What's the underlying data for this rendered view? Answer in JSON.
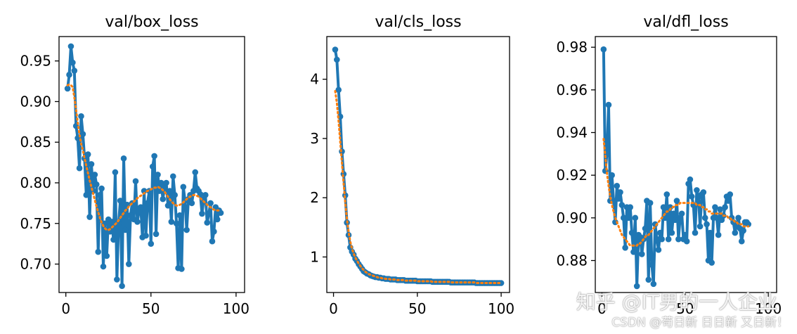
{
  "colors": {
    "series": "#1f77b4",
    "smooth": "#ff7f0e",
    "axis": "#000000"
  },
  "watermarks": {
    "zhihu": "知乎 @IT男的一人企业",
    "csdn": "CSDN @苟日新 日日新 又日新！"
  },
  "chart_data": [
    {
      "type": "line",
      "title": "val/box_loss",
      "xlim": [
        -4,
        105
      ],
      "ylim": [
        0.665,
        0.98
      ],
      "xticks": [
        0,
        50,
        100
      ],
      "yticks": [
        0.7,
        0.75,
        0.8,
        0.85,
        0.9,
        0.95
      ],
      "ytick_labels": [
        "0.70",
        "0.75",
        "0.80",
        "0.85",
        "0.90",
        "0.95"
      ],
      "x_start": 1,
      "series": [
        {
          "style": "solid-markers",
          "values": [
            0.916,
            0.933,
            0.968,
            0.948,
            0.938,
            0.87,
            0.855,
            0.818,
            0.882,
            0.86,
            0.83,
            0.785,
            0.835,
            0.758,
            0.823,
            0.79,
            0.81,
            0.798,
            0.715,
            0.785,
            0.793,
            0.697,
            0.75,
            0.71,
            0.755,
            0.74,
            0.752,
            0.73,
            0.813,
            0.681,
            0.75,
            0.778,
            0.673,
            0.83,
            0.742,
            0.773,
            0.7,
            0.76,
            0.775,
            0.755,
            0.802,
            0.752,
            0.765,
            0.77,
            0.733,
            0.79,
            0.735,
            0.775,
            0.79,
            0.725,
            0.82,
            0.833,
            0.737,
            0.81,
            0.79,
            0.8,
            0.78,
            0.795,
            0.8,
            0.772,
            0.79,
            0.752,
            0.808,
            0.785,
            0.75,
            0.695,
            0.76,
            0.694,
            0.795,
            0.778,
            0.742,
            0.78,
            0.785,
            0.775,
            0.79,
            0.813,
            0.793,
            0.79,
            0.786,
            0.762,
            0.78,
            0.785,
            0.751,
            0.762,
            0.775,
            0.728,
            0.74,
            0.77,
            0.755,
            0.766,
            0.763
          ]
        },
        {
          "style": "dotted",
          "values": [
            0.92,
            0.921,
            0.92,
            0.918,
            0.905,
            0.89,
            0.874,
            0.86,
            0.848,
            0.84,
            0.83,
            0.821,
            0.812,
            0.803,
            0.795,
            0.787,
            0.779,
            0.771,
            0.764,
            0.757,
            0.751,
            0.747,
            0.744,
            0.742,
            0.742,
            0.743,
            0.745,
            0.747,
            0.749,
            0.751,
            0.754,
            0.757,
            0.76,
            0.763,
            0.766,
            0.768,
            0.771,
            0.773,
            0.775,
            0.777,
            0.779,
            0.781,
            0.783,
            0.784,
            0.786,
            0.787,
            0.789,
            0.79,
            0.791,
            0.792,
            0.793,
            0.794,
            0.794,
            0.795,
            0.794,
            0.793,
            0.791,
            0.789,
            0.786,
            0.783,
            0.78,
            0.777,
            0.775,
            0.773,
            0.772,
            0.772,
            0.773,
            0.774,
            0.776,
            0.778,
            0.78,
            0.782,
            0.783,
            0.784,
            0.785,
            0.785,
            0.784,
            0.783,
            0.781,
            0.779,
            0.777,
            0.775,
            0.773,
            0.771,
            0.77,
            0.768,
            0.767,
            0.766,
            0.766,
            0.766,
            0.766
          ]
        }
      ]
    },
    {
      "type": "line",
      "title": "val/cls_loss",
      "xlim": [
        -4,
        105
      ],
      "ylim": [
        0.4,
        4.72
      ],
      "xticks": [
        0,
        50,
        100
      ],
      "yticks": [
        1,
        2,
        3,
        4
      ],
      "ytick_labels": [
        "1",
        "2",
        "3",
        "4"
      ],
      "x_start": 1,
      "series": [
        {
          "style": "solid-markers",
          "values": [
            4.5,
            4.33,
            3.82,
            3.37,
            2.78,
            2.4,
            2.04,
            1.58,
            1.37,
            1.16,
            1.09,
            1.04,
            0.97,
            0.93,
            0.88,
            0.84,
            0.8,
            0.76,
            0.74,
            0.72,
            0.71,
            0.69,
            0.68,
            0.67,
            0.66,
            0.66,
            0.65,
            0.65,
            0.64,
            0.64,
            0.63,
            0.63,
            0.63,
            0.62,
            0.62,
            0.62,
            0.62,
            0.61,
            0.61,
            0.61,
            0.61,
            0.61,
            0.6,
            0.6,
            0.6,
            0.6,
            0.6,
            0.6,
            0.6,
            0.59,
            0.59,
            0.59,
            0.59,
            0.59,
            0.59,
            0.59,
            0.59,
            0.59,
            0.58,
            0.58,
            0.58,
            0.58,
            0.58,
            0.58,
            0.58,
            0.58,
            0.58,
            0.58,
            0.58,
            0.57,
            0.57,
            0.57,
            0.57,
            0.57,
            0.57,
            0.57,
            0.57,
            0.57,
            0.57,
            0.57,
            0.57,
            0.57,
            0.57,
            0.57,
            0.56,
            0.56,
            0.56,
            0.56,
            0.56,
            0.56,
            0.56,
            0.56,
            0.56,
            0.56,
            0.56,
            0.56,
            0.56,
            0.56,
            0.56,
            0.56
          ]
        },
        {
          "style": "dotted",
          "values": [
            3.8,
            3.6,
            3.3,
            2.95,
            2.6,
            2.25,
            1.92,
            1.64,
            1.42,
            1.26,
            1.14,
            1.06,
            0.99,
            0.94,
            0.89,
            0.85,
            0.81,
            0.78,
            0.75,
            0.73,
            0.71,
            0.7,
            0.69,
            0.68,
            0.67,
            0.66,
            0.65,
            0.65,
            0.64,
            0.64,
            0.63,
            0.63,
            0.63,
            0.62,
            0.62,
            0.62,
            0.62,
            0.61,
            0.61,
            0.61,
            0.61,
            0.61,
            0.6,
            0.6,
            0.6,
            0.6,
            0.6,
            0.6,
            0.6,
            0.59,
            0.59,
            0.59,
            0.59,
            0.59,
            0.59,
            0.59,
            0.59,
            0.59,
            0.58,
            0.58,
            0.58,
            0.58,
            0.58,
            0.58,
            0.58,
            0.58,
            0.58,
            0.58,
            0.58,
            0.57,
            0.57,
            0.57,
            0.57,
            0.57,
            0.57,
            0.57,
            0.57,
            0.57,
            0.57,
            0.57,
            0.57,
            0.57,
            0.57,
            0.57,
            0.56,
            0.56,
            0.56,
            0.56,
            0.56,
            0.56,
            0.56,
            0.56,
            0.56,
            0.56,
            0.56,
            0.56,
            0.56,
            0.56,
            0.56,
            0.56
          ]
        }
      ]
    },
    {
      "type": "line",
      "title": "val/dfl_loss",
      "xlim": [
        -4,
        105
      ],
      "ylim": [
        0.865,
        0.985
      ],
      "xticks": [
        0,
        50,
        100
      ],
      "yticks": [
        0.88,
        0.9,
        0.92,
        0.94,
        0.96,
        0.98
      ],
      "ytick_labels": [
        "0.88",
        "0.90",
        "0.92",
        "0.94",
        "0.96",
        "0.98"
      ],
      "x_start": 1,
      "series": [
        {
          "style": "solid-markers",
          "values": [
            0.979,
            0.922,
            0.93,
            0.953,
            0.908,
            0.92,
            0.908,
            0.898,
            0.915,
            0.909,
            0.912,
            0.906,
            0.9,
            0.886,
            0.905,
            0.9,
            0.905,
            0.893,
            0.884,
            0.9,
            0.868,
            0.892,
            0.891,
            0.883,
            0.89,
            0.895,
            0.908,
            0.871,
            0.907,
            0.878,
            0.869,
            0.897,
            0.89,
            0.885,
            0.893,
            0.89,
            0.905,
            0.9,
            0.911,
            0.89,
            0.905,
            0.893,
            0.902,
            0.899,
            0.908,
            0.89,
            0.9,
            0.902,
            0.89,
            0.892,
            0.889,
            0.916,
            0.918,
            0.91,
            0.906,
            0.893,
            0.913,
            0.91,
            0.896,
            0.911,
            0.912,
            0.9,
            0.897,
            0.88,
            0.893,
            0.879,
            0.9,
            0.905,
            0.9,
            0.892,
            0.904,
            0.899,
            0.901,
            0.905,
            0.91,
            0.908,
            0.911,
            0.9,
            0.898,
            0.893,
            0.897,
            0.9,
            0.895,
            0.889,
            0.894,
            0.898,
            0.898,
            0.897
          ]
        },
        {
          "style": "dotted",
          "values": [
            0.937,
            0.929,
            0.921,
            0.915,
            0.91,
            0.906,
            0.903,
            0.9,
            0.898,
            0.896,
            0.894,
            0.892,
            0.891,
            0.89,
            0.889,
            0.888,
            0.887,
            0.887,
            0.887,
            0.887,
            0.887,
            0.888,
            0.888,
            0.889,
            0.89,
            0.891,
            0.892,
            0.892,
            0.893,
            0.894,
            0.895,
            0.896,
            0.897,
            0.898,
            0.899,
            0.9,
            0.901,
            0.902,
            0.903,
            0.903,
            0.904,
            0.905,
            0.905,
            0.906,
            0.906,
            0.906,
            0.907,
            0.907,
            0.907,
            0.907,
            0.907,
            0.907,
            0.907,
            0.907,
            0.907,
            0.907,
            0.906,
            0.906,
            0.906,
            0.905,
            0.905,
            0.904,
            0.904,
            0.903,
            0.903,
            0.902,
            0.902,
            0.902,
            0.902,
            0.902,
            0.902,
            0.902,
            0.901,
            0.901,
            0.901,
            0.9,
            0.9,
            0.899,
            0.899,
            0.898,
            0.898,
            0.897,
            0.897,
            0.897,
            0.896,
            0.896,
            0.896,
            0.896
          ]
        }
      ]
    }
  ]
}
